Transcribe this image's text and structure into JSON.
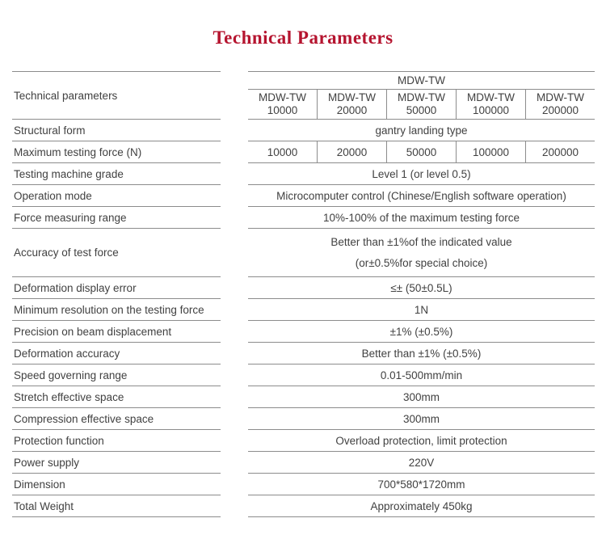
{
  "page": {
    "title": "Technical Parameters"
  },
  "colors": {
    "title_red": "#b5142f",
    "text_gray": "#414141",
    "line_gray": "#8c8c8c"
  },
  "table": {
    "corner_label": "Technical parameters",
    "group_header": "MDW-TW",
    "models": [
      {
        "line1": "MDW-TW",
        "line2": "10000"
      },
      {
        "line1": "MDW-TW",
        "line2": "20000"
      },
      {
        "line1": "MDW-TW",
        "line2": "50000"
      },
      {
        "line1": "MDW-TW",
        "line2": "100000"
      },
      {
        "line1": "MDW-TW",
        "line2": "200000"
      }
    ],
    "rows": [
      {
        "label": "Structural form",
        "value": "gantry landing type"
      },
      {
        "label": "Maximum testing force (N)",
        "values": [
          "10000",
          "20000",
          "50000",
          "100000",
          "200000"
        ]
      },
      {
        "label": "Testing machine grade",
        "value": "Level 1  (or level 0.5)"
      },
      {
        "label": "Operation mode",
        "value": "Microcomputer control (Chinese/English software operation)"
      },
      {
        "label": "Force measuring range",
        "value": "10%-100% of the maximum testing force"
      },
      {
        "label": "Accuracy of test force",
        "line1": "Better than ±1%of the indicated value",
        "line2": "(or±0.5%for special choice)"
      },
      {
        "label": "Deformation display error",
        "value": "≤±  (50±0.5L)"
      },
      {
        "label": "Minimum resolution on the testing force",
        "value": "1N"
      },
      {
        "label": "Precision on beam displacement",
        "value": "±1%  (±0.5%)"
      },
      {
        "label": "Deformation accuracy",
        "value": "Better than ±1%  (±0.5%)"
      },
      {
        "label": "Speed governing range",
        "value": "0.01-500mm/min"
      },
      {
        "label": "Stretch effective space",
        "value": "300mm"
      },
      {
        "label": "Compression effective space",
        "value": "300mm"
      },
      {
        "label": "Protection function",
        "value": "Overload protection, limit protection"
      },
      {
        "label": "Power supply",
        "value": "220V"
      },
      {
        "label": "Dimension",
        "value": "700*580*1720mm"
      },
      {
        "label": "Total Weight",
        "value": "Approximately 450kg"
      }
    ]
  }
}
